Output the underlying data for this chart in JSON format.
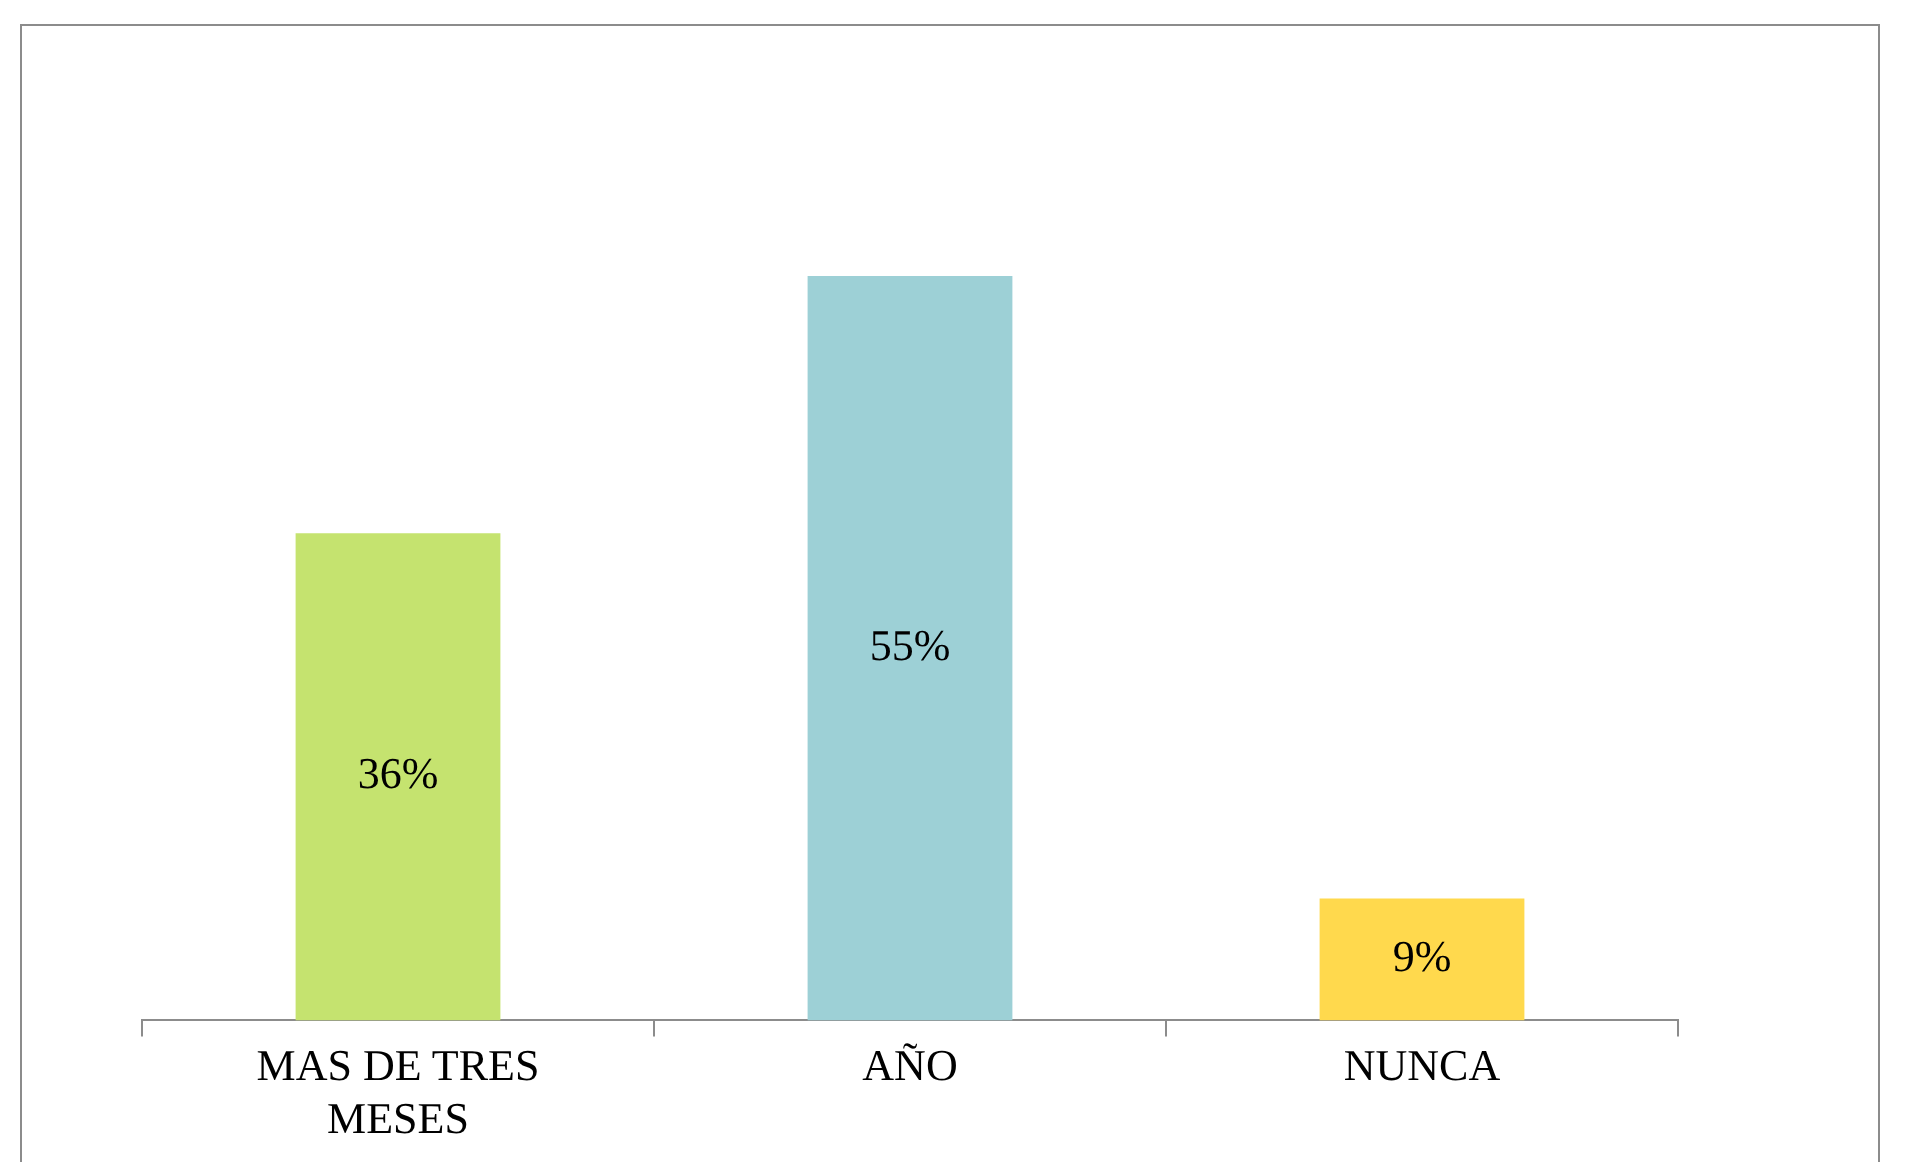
{
  "chart_data": {
    "type": "bar",
    "categories": [
      "MAS DE TRES MESES",
      "AÑO",
      "NUNCA"
    ],
    "values": [
      36,
      55,
      9
    ],
    "colors": [
      "#c5e36f",
      "#9dd0d6",
      "#ffd94d"
    ],
    "value_labels": [
      "36%",
      "55%",
      "9%"
    ],
    "grid": false,
    "legend": false
  }
}
